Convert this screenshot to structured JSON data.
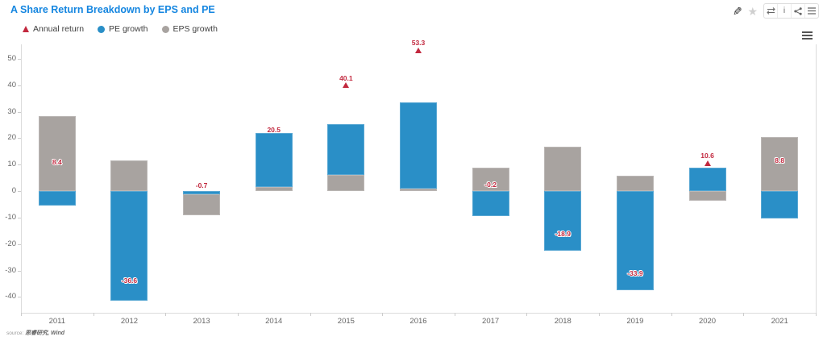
{
  "header": {
    "title": "A Share Return Breakdown by EPS and PE",
    "title_color": "#1586e0",
    "toolbar": {
      "edit_icon": "✎",
      "star_icon": "★"
    }
  },
  "legend": {
    "items": [
      "Annual return",
      "PE growth",
      "EPS growth"
    ]
  },
  "chart_data": {
    "type": "bar",
    "stacked": true,
    "title": "A Share Return Breakdown by EPS and PE",
    "categories": [
      "2011",
      "2012",
      "2013",
      "2014",
      "2015",
      "2016",
      "2017",
      "2018",
      "2019",
      "2020",
      "2021"
    ],
    "series": [
      {
        "name": "Annual return",
        "type": "scatter",
        "symbol": "triangle",
        "color": "#c2283e",
        "values": [
          8.4,
          -36.6,
          -0.7,
          20.5,
          40.1,
          53.3,
          -0.2,
          -18.9,
          -33.9,
          10.6,
          8.8
        ],
        "marker_visible": [
          false,
          false,
          false,
          false,
          true,
          true,
          false,
          false,
          false,
          true,
          false
        ]
      },
      {
        "name": "PE growth",
        "type": "bar",
        "color": "#2a8fc7",
        "values": [
          -5.5,
          -41.5,
          -1.2,
          20.4,
          19.3,
          32.5,
          -9.3,
          -22.5,
          -37.5,
          8.8,
          -10.2
        ]
      },
      {
        "name": "EPS growth",
        "type": "bar",
        "color": "#a8a3a0",
        "values": [
          28.5,
          11.5,
          -7.8,
          1.5,
          6.0,
          1.0,
          9.0,
          16.8,
          5.7,
          -3.5,
          20.5
        ]
      }
    ],
    "xlabel": "",
    "ylabel": "",
    "yticks": [
      50,
      40,
      30,
      20,
      10,
      0,
      -10,
      -20,
      -30,
      -40
    ],
    "ylim": [
      -46,
      55.5
    ],
    "grid": false,
    "legend_position": "top-left",
    "annotation_color": "#c2283e",
    "axis_text_color": "#666666"
  },
  "footer": {
    "source_prefix": "source:",
    "source": "思睿研究, Wind"
  }
}
